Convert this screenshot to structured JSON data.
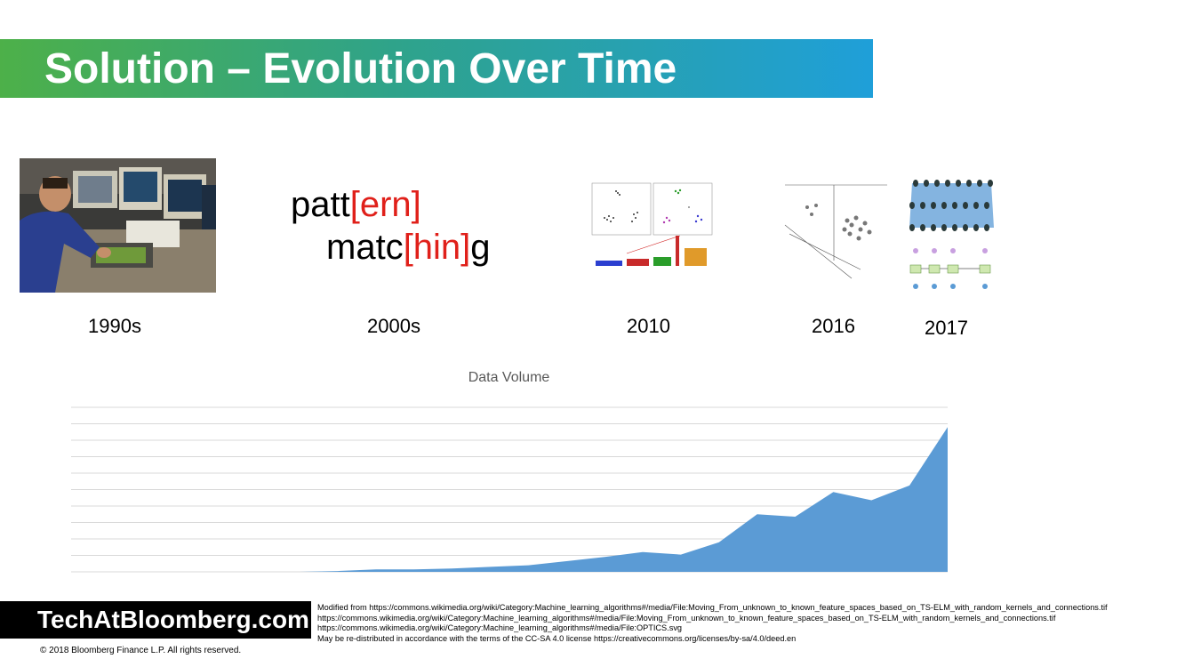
{
  "slide": {
    "title": "Solution – Evolution Over Time"
  },
  "timeline": {
    "pattern_text": {
      "line1_a": "patt",
      "line1_b": "[ern]",
      "line2_a": "matc",
      "line2_b": "[hin]",
      "line2_c": "g"
    },
    "years": [
      "1990s",
      "2000s",
      "2010",
      "2016",
      "2017"
    ],
    "images": [
      "trader-workstation-photo",
      "clustering-plots-thumbnail",
      "feature-space-thumbnail",
      "neural-network-thumbnail"
    ]
  },
  "chart_data": {
    "type": "area",
    "title": "Data Volume",
    "xlabel": "",
    "ylabel": "",
    "grid": true,
    "ylim": [
      0,
      100
    ],
    "values": [
      0,
      0,
      0,
      0,
      0,
      0,
      0,
      0.5,
      1.5,
      1.5,
      2,
      3,
      4,
      6.5,
      9,
      12,
      10.5,
      18,
      35,
      33.5,
      48.5,
      43.5,
      52.5,
      88
    ],
    "color": "#5b9bd5"
  },
  "footer": {
    "brand": "TechAtBloomberg.com",
    "copyright": "© 2018  Bloomberg  Finance L.P.  All rights reserved.",
    "credits": [
      "Modified from https://commons.wikimedia.org/wiki/Category:Machine_learning_algorithms#/media/File:Moving_From_unknown_to_known_feature_spaces_based_on_TS-ELM_with_random_kernels_and_connections.tif",
      "https://commons.wikimedia.org/wiki/Category:Machine_learning_algorithms#/media/File:Moving_From_unknown_to_known_feature_spaces_based_on_TS-ELM_with_random_kernels_and_connections.tif",
      "https://commons.wikimedia.org/wiki/Category:Machine_learning_algorithms#/media/File:OPTICS.svg",
      "May be re-distributed in accordance with the terms of the CC-SA 4.0 license https://creativecommons.org/licenses/by-sa/4.0/deed.en"
    ]
  },
  "colors": {
    "title_gradient_start": "#4db049",
    "title_gradient_end": "#1f9fd9",
    "highlight": "#e0201a",
    "area_fill": "#5b9bd5"
  }
}
